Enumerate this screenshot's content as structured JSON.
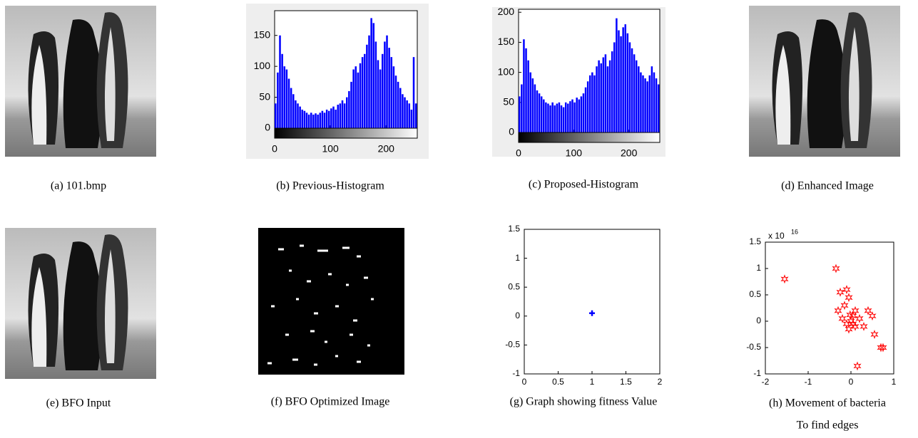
{
  "captions": [
    "(a) 101.bmp",
    "(b) Previous-Histogram",
    "(c) Proposed-Histogram",
    "(d) Enhanced Image",
    "(e) BFO Input",
    "(f) BFO Optimized Image",
    "(g) Graph showing fitness Value",
    "(h) Movement of bacteria"
  ],
  "caption_h_second_line": "To find edges",
  "chart_data": [
    {
      "type": "histogram",
      "color": "#0000ff",
      "bins": [
        0,
        4,
        8,
        12,
        16,
        20,
        24,
        28,
        32,
        36,
        40,
        44,
        48,
        52,
        56,
        60,
        64,
        68,
        72,
        76,
        80,
        84,
        88,
        92,
        96,
        100,
        104,
        108,
        112,
        116,
        120,
        124,
        128,
        132,
        136,
        140,
        144,
        148,
        152,
        156,
        160,
        164,
        168,
        172,
        176,
        180,
        184,
        188,
        192,
        196,
        200,
        204,
        208,
        212,
        216,
        220,
        224,
        228,
        232,
        236,
        240,
        244,
        248,
        252,
        256
      ],
      "values": [
        40,
        90,
        150,
        120,
        100,
        95,
        80,
        65,
        55,
        45,
        40,
        35,
        30,
        28,
        25,
        22,
        25,
        22,
        24,
        22,
        25,
        28,
        25,
        30,
        28,
        32,
        35,
        30,
        38,
        40,
        45,
        40,
        50,
        60,
        75,
        95,
        100,
        90,
        105,
        115,
        120,
        135,
        150,
        178,
        170,
        140,
        110,
        95,
        120,
        140,
        150,
        130,
        115,
        100,
        85,
        75,
        65,
        55,
        50,
        45,
        40,
        30,
        115,
        40
      ],
      "xlim": [
        0,
        256
      ],
      "ylim": [
        0,
        190
      ],
      "xticks": [
        0,
        100,
        200
      ],
      "yticks": [
        0,
        50,
        100,
        150
      ]
    },
    {
      "type": "histogram",
      "color": "#0000ff",
      "bins": [
        0,
        4,
        8,
        12,
        16,
        20,
        24,
        28,
        32,
        36,
        40,
        44,
        48,
        52,
        56,
        60,
        64,
        68,
        72,
        76,
        80,
        84,
        88,
        92,
        96,
        100,
        104,
        108,
        112,
        116,
        120,
        124,
        128,
        132,
        136,
        140,
        144,
        148,
        152,
        156,
        160,
        164,
        168,
        172,
        176,
        180,
        184,
        188,
        192,
        196,
        200,
        204,
        208,
        212,
        216,
        220,
        224,
        228,
        232,
        236,
        240,
        244,
        248,
        252,
        256
      ],
      "values": [
        60,
        80,
        155,
        140,
        120,
        100,
        90,
        80,
        70,
        65,
        60,
        55,
        50,
        48,
        45,
        50,
        45,
        48,
        50,
        45,
        42,
        50,
        48,
        52,
        55,
        50,
        58,
        55,
        60,
        65,
        75,
        85,
        95,
        100,
        95,
        110,
        120,
        115,
        125,
        130,
        110,
        120,
        135,
        150,
        190,
        170,
        160,
        175,
        180,
        165,
        150,
        140,
        130,
        120,
        110,
        100,
        95,
        90,
        85,
        95,
        110,
        100,
        90,
        80
      ],
      "xlim": [
        0,
        256
      ],
      "ylim": [
        0,
        205
      ],
      "xticks": [
        0,
        100,
        200
      ],
      "yticks": [
        0,
        50,
        100,
        150,
        200
      ]
    },
    {
      "type": "scatter",
      "color": "#0000ff",
      "marker": "plus",
      "x": [
        1
      ],
      "values": [
        0.05
      ],
      "xlim": [
        0,
        2
      ],
      "ylim": [
        -1,
        1.5
      ],
      "xticks": [
        0,
        0.5,
        1,
        1.5,
        2
      ],
      "yticks": [
        -1,
        -0.5,
        0,
        0.5,
        1,
        1.5
      ]
    },
    {
      "type": "scatter",
      "color": "#ff0000",
      "marker": "star",
      "exponent_label": "x 10",
      "exponent": "16",
      "x": [
        -1.55,
        -0.35,
        -0.25,
        -0.1,
        -0.05,
        -0.3,
        -0.2,
        0,
        0.1,
        0.05,
        -0.1,
        0.2,
        0.4,
        0.5,
        0.55,
        0.7,
        0.75,
        0.15,
        -0.15,
        0.1,
        0.3,
        -0.05,
        0.05,
        -0.02
      ],
      "values": [
        0.8,
        1.0,
        0.55,
        0.6,
        0.45,
        0.2,
        0.05,
        0,
        -0.1,
        0.1,
        -0.05,
        0.05,
        0.2,
        0.1,
        -0.25,
        -0.5,
        -0.5,
        -0.85,
        0.3,
        0.2,
        -0.1,
        -0.15,
        -0.05,
        0.12
      ],
      "xlim": [
        -2,
        1
      ],
      "ylim": [
        -1,
        1.5
      ],
      "xticks": [
        -2,
        -1,
        0,
        1
      ],
      "yticks": [
        -1,
        -0.5,
        0,
        0.5,
        1,
        1.5
      ]
    }
  ]
}
